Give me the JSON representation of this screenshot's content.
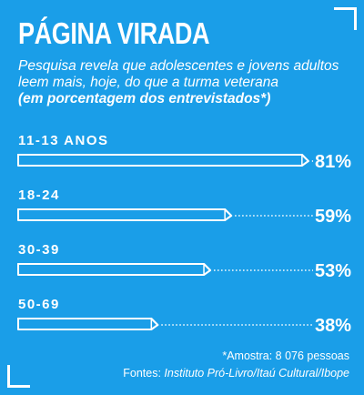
{
  "header": {
    "title": "PÁGINA VIRADA",
    "subtitle": "Pesquisa revela que adolescentes e jovens adultos leem mais, hoje, do que a turma veterana",
    "unit_note": "(em porcentagem dos entrevistados*)"
  },
  "chart_data": {
    "type": "bar",
    "orientation": "horizontal",
    "categories": [
      "11-13 ANOS",
      "18-24",
      "30-39",
      "50-69"
    ],
    "values": [
      81,
      59,
      53,
      38
    ],
    "value_labels": [
      "81%",
      "59%",
      "53%",
      "38%"
    ],
    "title": "PÁGINA VIRADA",
    "xlim": [
      0,
      100
    ],
    "grid": false,
    "legend": "none"
  },
  "footer": {
    "sample": "*Amostra: 8 076 pessoas",
    "sources_prefix": "Fontes: ",
    "sources": "Instituto Pró-Livro/Itaú Cultural/Ibope"
  },
  "colors": {
    "background": "#1a9ee8",
    "bar_fill": "#1a9ee8",
    "bar_outline": "#ffffff",
    "text": "#ffffff"
  }
}
